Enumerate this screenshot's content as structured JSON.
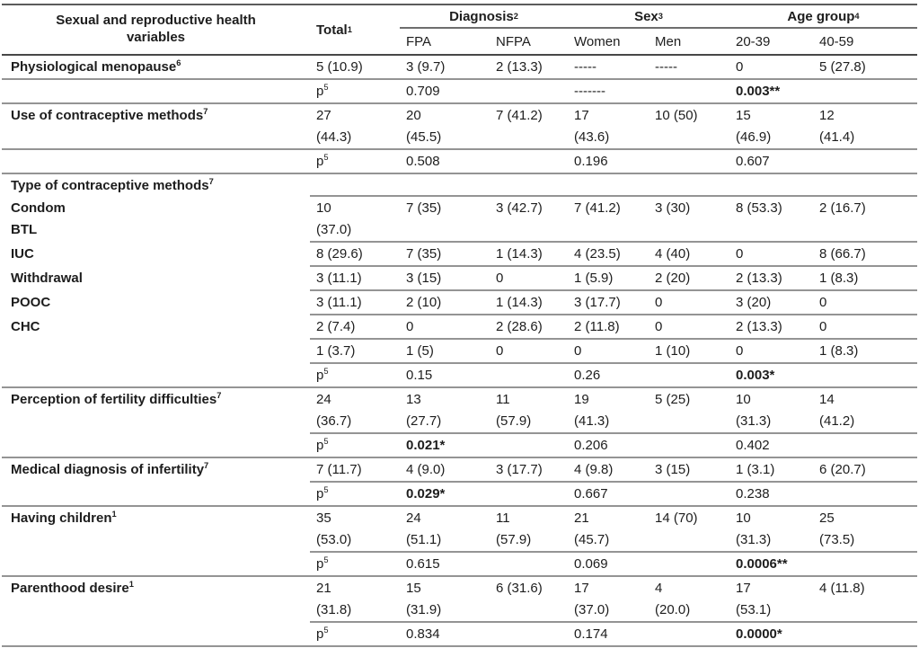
{
  "header": {
    "col1": {
      "line1": "Sexual and reproductive health",
      "line2": "variables"
    },
    "total": {
      "text": "Total",
      "sup": "1"
    },
    "groups": [
      {
        "label": {
          "text": "Diagnosis",
          "sup": "2"
        },
        "sub": [
          "FPA",
          "NFPA"
        ]
      },
      {
        "label": {
          "text": "Sex",
          "sup": "3"
        },
        "sub": [
          "Women",
          "Men"
        ]
      },
      {
        "label": {
          "text": "Age group",
          "sup": "4"
        },
        "sub": [
          "20-39",
          "40-59"
        ]
      }
    ]
  },
  "p_label": {
    "text": "p",
    "sup": "5"
  },
  "colors": {
    "rule_light": "#949494",
    "rule_dark": "#474747",
    "text": "#1d1d1d"
  },
  "rows": [
    {
      "kind": "data",
      "border": "full",
      "label": [
        {
          "text": "Physiological menopause",
          "sup": "6"
        }
      ],
      "cells": [
        "5 (10.9)",
        "3 (9.7)",
        "2 (13.3)",
        "-----",
        "-----",
        "0",
        "5 (27.8)"
      ]
    },
    {
      "kind": "p",
      "border": "full",
      "diagnosis": "0.709",
      "sex": "-------",
      "age": {
        "t": "0.003**",
        "b": true
      }
    },
    {
      "kind": "data",
      "border": "full",
      "label": [
        {
          "text": "Use of contraceptive methods",
          "sup": "7"
        }
      ],
      "cells": [
        [
          "27",
          "(44.3)"
        ],
        [
          "20",
          "(45.5)"
        ],
        "7 (41.2)",
        [
          "17",
          "(43.6)"
        ],
        "10 (50)",
        [
          "15",
          "(46.9)"
        ],
        [
          "12",
          "(41.4)"
        ]
      ]
    },
    {
      "kind": "p",
      "border": "full",
      "diagnosis": "0.508",
      "sex": "0.196",
      "age": "0.607"
    },
    {
      "kind": "section",
      "border": "data",
      "label": [
        {
          "text": "Type of contraceptive methods",
          "sup": "7"
        }
      ]
    },
    {
      "kind": "data",
      "border": "data",
      "label": [
        {
          "text": "Condom"
        },
        {
          "text": "BTL"
        }
      ],
      "cells": [
        [
          "10",
          "(37.0)"
        ],
        "7 (35)",
        "3 (42.7)",
        "7 (41.2)",
        "3 (30)",
        "8 (53.3)",
        "2 (16.7)"
      ]
    },
    {
      "kind": "data",
      "border": "data",
      "label": [
        {
          "text": "IUC"
        }
      ],
      "cells": [
        "8 (29.6)",
        "7 (35)",
        "1 (14.3)",
        "4 (23.5)",
        "4 (40)",
        "0",
        "8 (66.7)"
      ]
    },
    {
      "kind": "data",
      "border": "data",
      "label": [
        {
          "text": "Withdrawal"
        }
      ],
      "cells": [
        "3 (11.1)",
        "3 (15)",
        "0",
        "1 (5.9)",
        "2 (20)",
        "2 (13.3)",
        "1 (8.3)"
      ]
    },
    {
      "kind": "data",
      "border": "data",
      "label": [
        {
          "text": "POOC"
        }
      ],
      "cells": [
        "3 (11.1)",
        "2 (10)",
        "1 (14.3)",
        "3 (17.7)",
        "0",
        "3 (20)",
        "0"
      ]
    },
    {
      "kind": "data",
      "border": "data",
      "label": [
        {
          "text": "CHC"
        }
      ],
      "cells": [
        "2 (7.4)",
        "0",
        "2 (28.6)",
        "2 (11.8)",
        "0",
        "2 (13.3)",
        "0"
      ]
    },
    {
      "kind": "data",
      "border": "data",
      "label": [],
      "cells": [
        "1 (3.7)",
        "1 (5)",
        "0",
        "0",
        "1 (10)",
        "0",
        "1 (8.3)"
      ]
    },
    {
      "kind": "p",
      "border": "full",
      "diagnosis": "0.15",
      "sex": "0.26",
      "age": {
        "t": "0.003*",
        "b": true
      }
    },
    {
      "kind": "data",
      "border": "data",
      "label": [
        {
          "text": "Perception of fertility difficulties",
          "sup": "7"
        }
      ],
      "cells": [
        [
          "24",
          "(36.7)"
        ],
        [
          "13",
          "(27.7)"
        ],
        [
          "11",
          "(57.9)"
        ],
        [
          "19",
          "(41.3)"
        ],
        "5 (25)",
        [
          "10",
          "(31.3)"
        ],
        [
          "14",
          "(41.2)"
        ]
      ]
    },
    {
      "kind": "p",
      "border": "full",
      "diagnosis": {
        "t": "0.021*",
        "b": true
      },
      "sex": "0.206",
      "age": "0.402"
    },
    {
      "kind": "data",
      "border": "data",
      "label": [
        {
          "text": "Medical diagnosis of infertility",
          "sup": "7"
        }
      ],
      "cells": [
        "7 (11.7)",
        "4 (9.0)",
        "3 (17.7)",
        "4 (9.8)",
        "3 (15)",
        "1 (3.1)",
        "6 (20.7)"
      ]
    },
    {
      "kind": "p",
      "border": "full",
      "diagnosis": {
        "t": "0.029*",
        "b": true
      },
      "sex": "0.667",
      "age": "0.238"
    },
    {
      "kind": "data",
      "border": "data",
      "label": [
        {
          "text": "Having children",
          "sup": "1"
        }
      ],
      "cells": [
        [
          "35",
          "(53.0)"
        ],
        [
          "24",
          "(51.1)"
        ],
        [
          "11",
          "(57.9)"
        ],
        [
          "21",
          "(45.7)"
        ],
        "14 (70)",
        [
          "10",
          "(31.3)"
        ],
        [
          "25",
          "(73.5)"
        ]
      ]
    },
    {
      "kind": "p",
      "border": "full",
      "diagnosis": "0.615",
      "sex": "0.069",
      "age": {
        "t": "0.0006**",
        "b": true
      }
    },
    {
      "kind": "data",
      "border": "data",
      "label": [
        {
          "text": "Parenthood desire",
          "sup": "1"
        }
      ],
      "cells": [
        [
          "21",
          "(31.8)"
        ],
        [
          "15",
          "(31.9)"
        ],
        "6 (31.6)",
        [
          "17",
          "(37.0)"
        ],
        [
          "4",
          "(20.0)"
        ],
        [
          "17",
          "(53.1)"
        ],
        "4 (11.8)"
      ]
    },
    {
      "kind": "p",
      "border": "full",
      "diagnosis": "0.834",
      "sex": "0.174",
      "age": {
        "t": "0.0000*",
        "b": true
      }
    }
  ]
}
